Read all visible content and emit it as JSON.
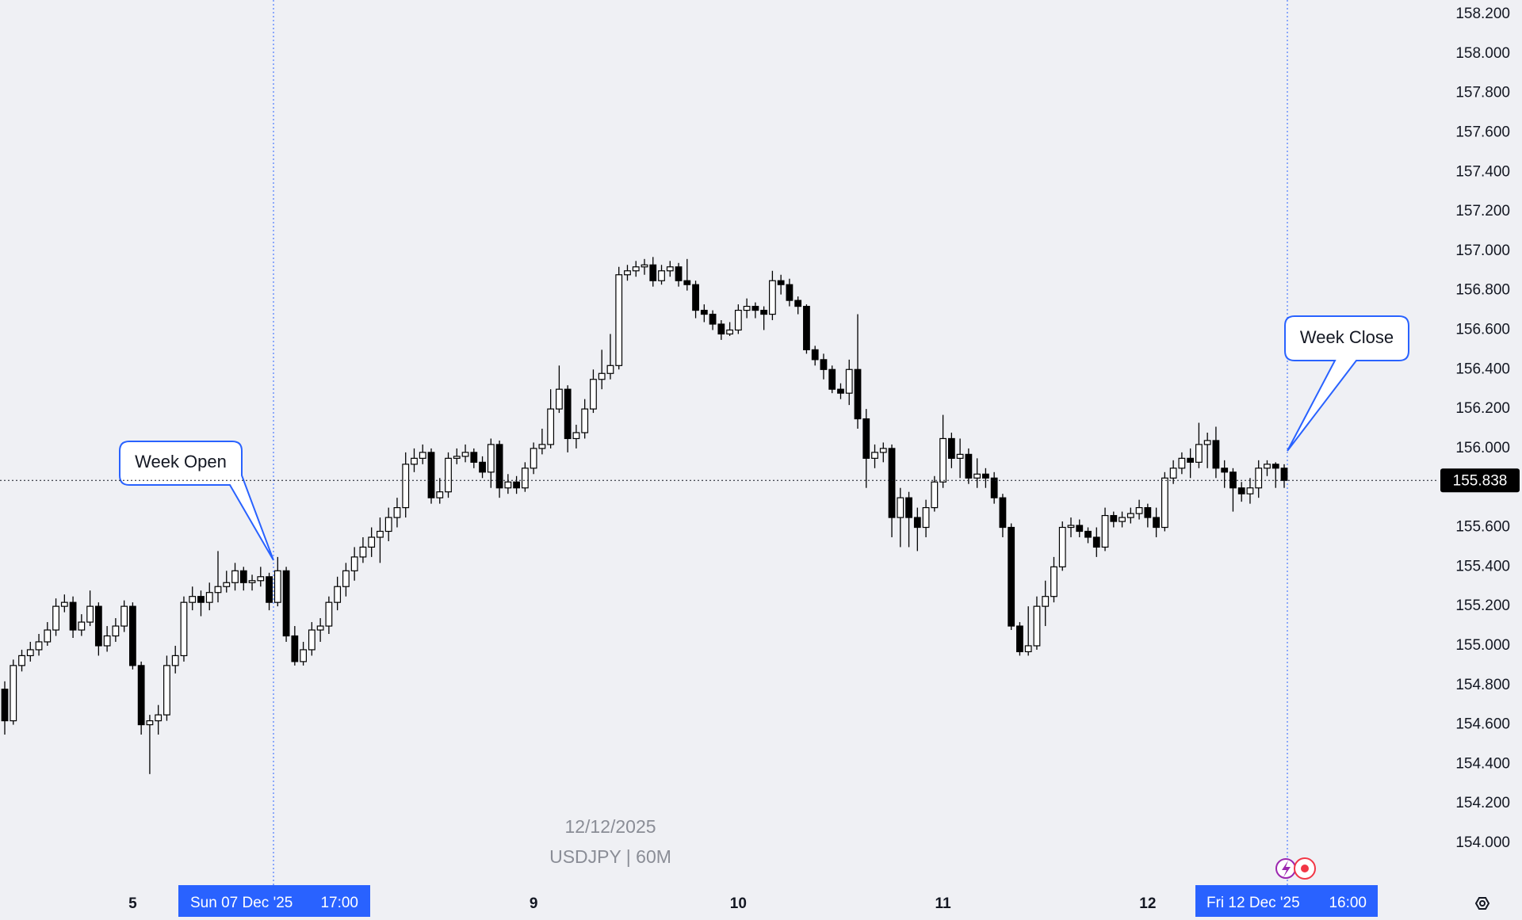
{
  "chart_data": {
    "type": "candlestick",
    "categories": [
      null,
      null,
      null,
      null,
      null,
      null,
      null,
      null,
      null,
      null,
      null,
      null,
      null,
      null,
      null,
      "5",
      null,
      null,
      null,
      null,
      null,
      null,
      null,
      null,
      null,
      null,
      null,
      null,
      null,
      null,
      null,
      null,
      null,
      null,
      null,
      null,
      null,
      null,
      null,
      null,
      null,
      null,
      null,
      null,
      null,
      null,
      null,
      null,
      null,
      null,
      null,
      null,
      null,
      null,
      null,
      null,
      null,
      null,
      null,
      null,
      null,
      null,
      "9",
      null,
      null,
      null,
      null,
      null,
      null,
      null,
      null,
      null,
      null,
      null,
      null,
      null,
      null,
      null,
      null,
      null,
      null,
      null,
      null,
      null,
      null,
      null,
      "10",
      null,
      null,
      null,
      null,
      null,
      null,
      null,
      null,
      null,
      null,
      null,
      null,
      null,
      null,
      null,
      null,
      null,
      null,
      null,
      null,
      null,
      null,
      null,
      "11",
      null,
      null,
      null,
      null,
      null,
      null,
      null,
      null,
      null,
      null,
      null,
      null,
      null,
      null,
      null,
      null,
      null,
      null,
      null,
      null,
      null,
      null,
      null,
      "12",
      null,
      null,
      null,
      null,
      null,
      null,
      null,
      null,
      null,
      null,
      null,
      null,
      null,
      null,
      null,
      null
    ],
    "open": [
      154.78,
      154.62,
      154.9,
      154.95,
      154.98,
      155.02,
      155.08,
      155.2,
      155.22,
      155.08,
      155.12,
      155.2,
      155.0,
      155.05,
      155.1,
      155.2,
      154.9,
      154.6,
      154.62,
      154.65,
      154.9,
      154.95,
      155.22,
      155.25,
      155.22,
      155.27,
      155.3,
      155.32,
      155.38,
      155.32,
      155.33,
      155.35,
      155.22,
      155.38,
      155.05,
      154.92,
      154.98,
      155.08,
      155.1,
      155.22,
      155.3,
      155.38,
      155.45,
      155.5,
      155.55,
      155.58,
      155.65,
      155.7,
      155.92,
      155.95,
      155.98,
      155.75,
      155.78,
      155.95,
      155.96,
      155.98,
      155.93,
      155.88,
      156.02,
      155.8,
      155.83,
      155.8,
      155.9,
      156.0,
      156.02,
      156.2,
      156.3,
      156.05,
      156.08,
      156.2,
      156.35,
      156.38,
      156.42,
      156.88,
      156.9,
      156.92,
      156.93,
      156.85,
      156.9,
      156.92,
      156.85,
      156.83,
      156.7,
      156.68,
      156.63,
      156.58,
      156.6,
      156.7,
      156.72,
      156.7,
      156.68,
      156.85,
      156.83,
      156.75,
      156.72,
      156.5,
      156.45,
      156.4,
      156.3,
      156.28,
      156.4,
      156.15,
      155.95,
      155.98,
      156.0,
      155.65,
      155.75,
      155.65,
      155.6,
      155.7,
      155.83,
      156.05,
      155.95,
      155.97,
      155.85,
      155.87,
      155.85,
      155.75,
      155.6,
      155.1,
      154.97,
      155.0,
      155.2,
      155.25,
      155.4,
      155.6,
      155.61,
      155.58,
      155.55,
      155.5,
      155.66,
      155.63,
      155.65,
      155.67,
      155.7,
      155.65,
      155.6,
      155.85,
      155.9,
      155.95,
      155.93,
      156.02,
      156.04,
      155.9,
      155.88,
      155.8,
      155.77,
      155.8,
      155.9,
      155.92,
      155.9
    ],
    "high": [
      154.82,
      154.93,
      154.98,
      155.02,
      155.06,
      155.12,
      155.24,
      155.26,
      155.25,
      155.16,
      155.28,
      155.22,
      155.1,
      155.14,
      155.23,
      155.22,
      154.92,
      154.65,
      154.7,
      154.95,
      155.0,
      155.25,
      155.3,
      155.28,
      155.32,
      155.48,
      155.38,
      155.42,
      155.4,
      155.36,
      155.4,
      155.37,
      155.45,
      155.4,
      155.1,
      155.02,
      155.12,
      155.14,
      155.25,
      155.35,
      155.42,
      155.5,
      155.55,
      155.6,
      155.65,
      155.7,
      155.75,
      155.98,
      156.0,
      156.02,
      156.0,
      155.85,
      155.98,
      156.0,
      156.02,
      156.0,
      155.96,
      156.05,
      156.04,
      155.87,
      155.86,
      155.93,
      156.03,
      156.1,
      156.3,
      156.42,
      156.32,
      156.12,
      156.25,
      156.4,
      156.5,
      156.58,
      156.92,
      156.93,
      156.95,
      156.96,
      156.97,
      156.93,
      156.95,
      156.94,
      156.96,
      156.85,
      156.73,
      156.7,
      156.65,
      156.64,
      156.73,
      156.76,
      156.74,
      156.72,
      156.9,
      156.88,
      156.86,
      156.77,
      156.73,
      156.52,
      156.48,
      156.42,
      156.33,
      156.45,
      156.68,
      156.2,
      156.02,
      156.03,
      156.02,
      155.8,
      155.78,
      155.7,
      155.74,
      155.86,
      156.17,
      156.08,
      156.05,
      156.0,
      155.95,
      155.9,
      155.88,
      155.77,
      155.62,
      155.12,
      155.2,
      155.25,
      155.33,
      155.45,
      155.63,
      155.65,
      155.64,
      155.6,
      155.6,
      155.7,
      155.68,
      155.68,
      155.7,
      155.74,
      155.72,
      155.7,
      155.88,
      155.94,
      155.98,
      156.0,
      156.13,
      156.08,
      156.11,
      155.94,
      155.9,
      155.83,
      155.85,
      155.94,
      155.94,
      155.93,
      155.92
    ],
    "low": [
      154.55,
      154.6,
      154.87,
      154.92,
      154.95,
      155.0,
      155.05,
      155.17,
      155.04,
      155.05,
      155.1,
      154.95,
      154.97,
      155.02,
      155.07,
      154.88,
      154.55,
      154.35,
      154.55,
      154.62,
      154.86,
      154.92,
      155.18,
      155.15,
      155.18,
      155.22,
      155.27,
      155.28,
      155.28,
      155.28,
      155.3,
      155.18,
      155.2,
      155.02,
      154.9,
      154.9,
      154.95,
      155.02,
      155.06,
      155.18,
      155.25,
      155.33,
      155.42,
      155.45,
      155.42,
      155.53,
      155.6,
      155.65,
      155.88,
      155.92,
      155.72,
      155.72,
      155.75,
      155.92,
      155.93,
      155.9,
      155.85,
      155.8,
      155.75,
      155.77,
      155.77,
      155.78,
      155.87,
      155.97,
      156.0,
      156.18,
      155.98,
      156.0,
      156.05,
      156.18,
      156.3,
      156.35,
      156.4,
      156.85,
      156.87,
      156.88,
      156.82,
      156.83,
      156.87,
      156.82,
      156.8,
      156.66,
      156.64,
      156.6,
      156.55,
      156.57,
      156.58,
      156.66,
      156.66,
      156.6,
      156.65,
      156.78,
      156.72,
      156.68,
      156.48,
      156.42,
      156.35,
      156.28,
      156.25,
      156.22,
      156.1,
      155.8,
      155.9,
      155.93,
      155.55,
      155.5,
      155.5,
      155.48,
      155.55,
      155.68,
      155.8,
      155.9,
      155.85,
      155.82,
      155.8,
      155.8,
      155.72,
      155.55,
      155.08,
      154.95,
      154.95,
      154.98,
      155.1,
      155.22,
      155.38,
      155.55,
      155.55,
      155.52,
      155.45,
      155.48,
      155.6,
      155.6,
      155.62,
      155.64,
      155.6,
      155.55,
      155.58,
      155.82,
      155.87,
      155.85,
      155.9,
      155.9,
      155.85,
      155.8,
      155.68,
      155.73,
      155.72,
      155.75,
      155.86,
      155.8,
      155.8
    ],
    "close": [
      154.62,
      154.9,
      154.95,
      154.98,
      155.02,
      155.08,
      155.2,
      155.22,
      155.08,
      155.12,
      155.2,
      155.0,
      155.05,
      155.1,
      155.2,
      154.9,
      154.6,
      154.62,
      154.65,
      154.9,
      154.95,
      155.22,
      155.25,
      155.22,
      155.27,
      155.3,
      155.32,
      155.38,
      155.32,
      155.33,
      155.35,
      155.22,
      155.38,
      155.05,
      154.92,
      154.98,
      155.08,
      155.1,
      155.22,
      155.3,
      155.38,
      155.45,
      155.5,
      155.55,
      155.58,
      155.65,
      155.7,
      155.92,
      155.95,
      155.98,
      155.75,
      155.78,
      155.95,
      155.96,
      155.98,
      155.93,
      155.88,
      156.02,
      155.8,
      155.83,
      155.8,
      155.9,
      156.0,
      156.02,
      156.2,
      156.3,
      156.05,
      156.08,
      156.2,
      156.35,
      156.38,
      156.42,
      156.88,
      156.9,
      156.92,
      156.93,
      156.85,
      156.9,
      156.92,
      156.85,
      156.83,
      156.7,
      156.68,
      156.63,
      156.58,
      156.6,
      156.7,
      156.72,
      156.7,
      156.68,
      156.85,
      156.83,
      156.75,
      156.72,
      156.5,
      156.45,
      156.4,
      156.3,
      156.28,
      156.4,
      156.15,
      155.95,
      155.98,
      156.0,
      155.65,
      155.75,
      155.65,
      155.6,
      155.7,
      155.83,
      156.05,
      155.95,
      155.97,
      155.85,
      155.87,
      155.85,
      155.75,
      155.6,
      155.1,
      154.97,
      155.0,
      155.2,
      155.25,
      155.4,
      155.6,
      155.61,
      155.58,
      155.55,
      155.5,
      155.66,
      155.63,
      155.65,
      155.67,
      155.7,
      155.65,
      155.6,
      155.85,
      155.9,
      155.95,
      155.93,
      156.02,
      156.04,
      155.9,
      155.88,
      155.8,
      155.77,
      155.8,
      155.9,
      155.92,
      155.9,
      155.838
    ],
    "up_color": "#ffffff",
    "down_color": "#000000",
    "grid": false,
    "ylim": [
      154.0,
      158.2
    ],
    "yticks": [
      {
        "value": 158.2,
        "label": "158.200"
      },
      {
        "value": 158.0,
        "label": "158.000"
      },
      {
        "value": 157.8,
        "label": "157.800"
      },
      {
        "value": 157.6,
        "label": "157.600"
      },
      {
        "value": 157.4,
        "label": "157.400"
      },
      {
        "value": 157.2,
        "label": "157.200"
      },
      {
        "value": 157.0,
        "label": "157.000"
      },
      {
        "value": 156.8,
        "label": "156.800"
      },
      {
        "value": 156.6,
        "label": "156.600"
      },
      {
        "value": 156.4,
        "label": "156.400"
      },
      {
        "value": 156.2,
        "label": "156.200"
      },
      {
        "value": 156.0,
        "label": "156.000"
      },
      {
        "value": 155.8,
        "label": "155.800"
      },
      {
        "value": 155.6,
        "label": "155.600"
      },
      {
        "value": 155.4,
        "label": "155.400"
      },
      {
        "value": 155.2,
        "label": "155.200"
      },
      {
        "value": 155.0,
        "label": "155.000"
      },
      {
        "value": 154.8,
        "label": "154.800"
      },
      {
        "value": 154.6,
        "label": "154.600"
      },
      {
        "value": 154.4,
        "label": "154.400"
      },
      {
        "value": 154.2,
        "label": "154.200"
      },
      {
        "value": 154.0,
        "label": "154.000"
      }
    ],
    "last_price": 155.838,
    "watermark": [
      "12/12/2025",
      "USDJPY | 60M"
    ],
    "annotations": [
      "Week Open",
      "Week Close"
    ],
    "crosshair_labels": [
      {
        "date": "Sun 07 Dec '25",
        "time": "17:00"
      },
      {
        "date": "Fri 12 Dec '25",
        "time": "16:00"
      }
    ]
  }
}
